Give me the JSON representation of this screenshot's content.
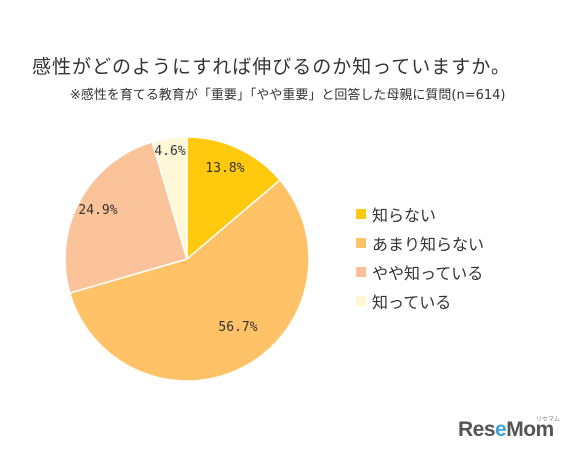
{
  "header": {
    "title": "感性がどのようにすれば伸びるのか知っていますか。",
    "subtitle": "※感性を育てる教育が「重要」「やや重要」と回答した母親に質問(n=614)"
  },
  "chart_data": {
    "type": "pie",
    "title": "感性がどのようにすれば伸びるのか知っていますか。",
    "subtitle": "※感性を育てる教育が「重要」「やや重要」と回答した母親に質問(n=614)",
    "categories": [
      "知らない",
      "あまり知らない",
      "やや知っている",
      "知っている"
    ],
    "values": [
      13.8,
      56.7,
      24.9,
      4.6
    ],
    "labels": [
      "13.8%",
      "56.7%",
      "24.9%",
      "4.6%"
    ],
    "colors": [
      "#FFC90E",
      "#FFC266",
      "#FBC399",
      "#FFF8D6"
    ],
    "start_angle": "12 o'clock",
    "direction": "clockwise",
    "legend_position": "right"
  },
  "logo": {
    "text_a": "Res",
    "text_b": "e",
    "text_c": "Mom",
    "kana": "リセマム"
  }
}
